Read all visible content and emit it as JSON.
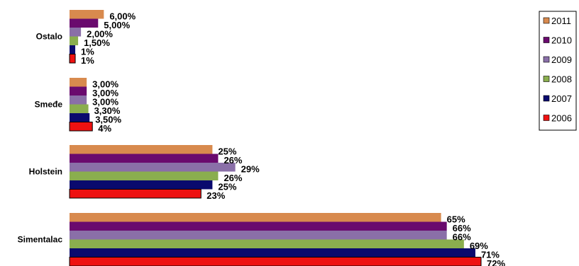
{
  "chart_data": {
    "type": "bar",
    "orientation": "horizontal",
    "categories": [
      "Ostalo",
      "Smeđe",
      "Holstein",
      "Simentalac"
    ],
    "series": [
      {
        "name": "2011",
        "color": "#D88A4E",
        "values": [
          6.0,
          3.0,
          25,
          65
        ],
        "labels": [
          "6,00%",
          "3,00%",
          "25%",
          "65%"
        ]
      },
      {
        "name": "2010",
        "color": "#6A0A6E",
        "values": [
          5.0,
          3.0,
          26,
          66
        ],
        "labels": [
          "5,00%",
          "3,00%",
          "26%",
          "66%"
        ]
      },
      {
        "name": "2009",
        "color": "#8A6FA8",
        "values": [
          2.0,
          3.0,
          29,
          66
        ],
        "labels": [
          "2,00%",
          "3,00%",
          "29%",
          "66%"
        ]
      },
      {
        "name": "2008",
        "color": "#8AAE4E",
        "values": [
          1.5,
          3.3,
          26,
          69
        ],
        "labels": [
          "1,50%",
          "3,30%",
          "26%",
          "69%"
        ]
      },
      {
        "name": "2007",
        "color": "#0A0A6E",
        "values": [
          1,
          3.5,
          25,
          71
        ],
        "labels": [
          "1%",
          "3,50%",
          "25%",
          "71%"
        ]
      },
      {
        "name": "2006",
        "color": "#EE1111",
        "values": [
          1,
          4,
          23,
          72
        ],
        "labels": [
          "1%",
          "4%",
          "23%",
          "72%"
        ]
      }
    ],
    "legend_position": "right",
    "grid": false,
    "xlim": [
      0,
      72
    ]
  }
}
